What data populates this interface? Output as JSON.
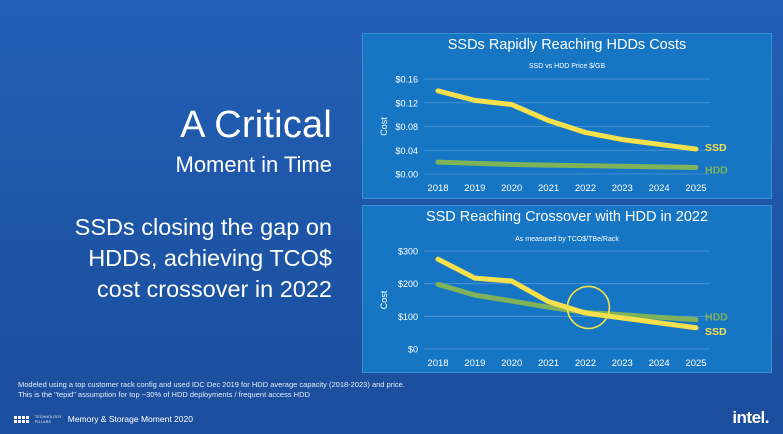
{
  "slide": {
    "title_main": "A Critical",
    "title_sub": "Moment in Time",
    "body_lines": [
      "SSDs closing the gap on",
      "HDDs, achieving TCO$",
      "cost crossover in 2022"
    ],
    "footnote_lines": [
      "Modeled using a top customer rack config and used IDC Dec 2019 for HDD average capacity (2018-2023) and price.",
      "This is the \"tepid\" assumption for top ~30% of HDD deployments / frequent access HDD"
    ],
    "footer_brand": "Memory & Storage Moment 2020",
    "brand_tiny_1": "TECHNOLOGY",
    "brand_tiny_2": "PILLARS",
    "logo": "intel."
  },
  "colors": {
    "ssd": "#f6e04b",
    "hdd": "#7fb35a",
    "panel": "#1676c4",
    "grid": "#4f97d6",
    "crossover_circle": "#f6e04b"
  },
  "chart_data": [
    {
      "type": "line",
      "title": "SSDs Rapidly Reaching HDDs Costs",
      "subtitle": "SSD vs HDD Price $/GB",
      "ylabel": "Cost",
      "xlabel": "",
      "x": [
        "2018",
        "2019",
        "2020",
        "2021",
        "2022",
        "2023",
        "2024",
        "2025"
      ],
      "ylim": [
        0,
        0.16
      ],
      "yticks": [
        0,
        0.04,
        0.08,
        0.12,
        0.16
      ],
      "ytick_labels": [
        "$0.00",
        "$0.04",
        "$0.08",
        "$0.12",
        "$0.16"
      ],
      "grid": true,
      "series": [
        {
          "name": "SSD",
          "color": "#f6e04b",
          "values": [
            0.14,
            0.124,
            0.117,
            0.09,
            0.07,
            0.058,
            0.05,
            0.042
          ]
        },
        {
          "name": "HDD",
          "color": "#7fb35a",
          "values": [
            0.02,
            0.018,
            0.016,
            0.015,
            0.014,
            0.013,
            0.012,
            0.011
          ]
        }
      ]
    },
    {
      "type": "line",
      "title": "SSD Reaching Crossover with HDD in 2022",
      "subtitle": "As measured by TCO$/TBe/Rack",
      "ylabel": "Cost",
      "xlabel": "",
      "x": [
        "2018",
        "2019",
        "2020",
        "2021",
        "2022",
        "2023",
        "2024",
        "2025"
      ],
      "ylim": [
        0,
        300
      ],
      "yticks": [
        0,
        100,
        200,
        300
      ],
      "ytick_labels": [
        "$0",
        "$100",
        "$200",
        "$300"
      ],
      "grid": true,
      "series": [
        {
          "name": "HDD",
          "color": "#7fb35a",
          "values": [
            198,
            165,
            147,
            128,
            112,
            105,
            97,
            90
          ]
        },
        {
          "name": "SSD",
          "color": "#f6e04b",
          "values": [
            275,
            217,
            208,
            145,
            110,
            95,
            80,
            65
          ]
        }
      ],
      "annotation": {
        "type": "circle",
        "x": "2022",
        "y": 118
      }
    }
  ]
}
